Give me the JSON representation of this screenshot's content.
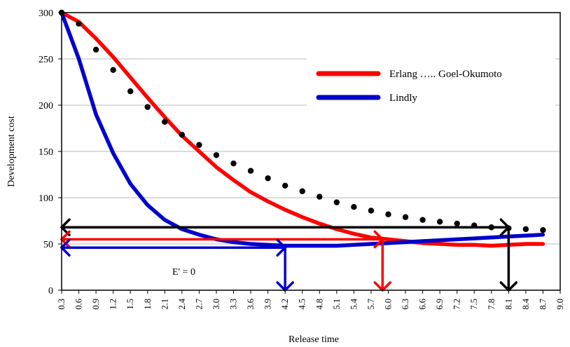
{
  "chart_data": {
    "type": "line",
    "xlabel": "Release time",
    "ylabel": "Development cost",
    "ylim": [
      0,
      300
    ],
    "yticks": [
      0,
      50,
      100,
      150,
      200,
      250,
      300
    ],
    "xlim": [
      0.3,
      9.0
    ],
    "xticks": [
      "0.3",
      "0.6",
      "0.9",
      "1.2",
      "1.5",
      "1.8",
      "2.1",
      "2.4",
      "2.7",
      "3.0",
      "3.3",
      "3.6",
      "3.9",
      "4.2",
      "4.5",
      "4.8",
      "5.1",
      "5.4",
      "5.7",
      "6.0",
      "6.3",
      "6.6",
      "6.9",
      "7.2",
      "7.5",
      "7.8",
      "8.1",
      "8.4",
      "8.7",
      "9.0"
    ],
    "grid": "horizontal",
    "legend": {
      "placement": "top-right",
      "entries": [
        {
          "label": "Erlang ….. Goel-Okumoto",
          "color": "#ff0000"
        },
        {
          "label": "Lindly",
          "color": "#0000cc"
        }
      ]
    },
    "annotation": "E' = 0",
    "series": [
      {
        "color": "#ff0000",
        "style": "solid",
        "x": [
          0.3,
          0.6,
          0.9,
          1.2,
          1.5,
          1.8,
          2.1,
          2.4,
          2.7,
          3.0,
          3.3,
          3.6,
          3.9,
          4.2,
          4.5,
          4.8,
          5.1,
          5.4,
          5.7,
          6.0,
          6.3,
          6.6,
          6.9,
          7.2,
          7.5,
          7.8,
          8.1,
          8.4,
          8.7
        ],
        "y": [
          300,
          290,
          272,
          252,
          230,
          208,
          187,
          167,
          150,
          133,
          119,
          106,
          96,
          87,
          79,
          72,
          66,
          61,
          57,
          55,
          53,
          51,
          50,
          49,
          49,
          48,
          49,
          50,
          50
        ]
      },
      {
        "color": "#0000cc",
        "style": "solid",
        "x": [
          0.3,
          0.6,
          0.9,
          1.2,
          1.5,
          1.8,
          2.1,
          2.4,
          2.7,
          3.0,
          3.3,
          3.6,
          3.9,
          4.2,
          4.5,
          4.8,
          5.1,
          5.4,
          5.7,
          6.0,
          6.3,
          6.6,
          6.9,
          7.2,
          7.5,
          7.8,
          8.1,
          8.4,
          8.7
        ],
        "y": [
          300,
          250,
          190,
          148,
          115,
          92,
          76,
          66,
          60,
          55,
          52,
          50,
          49,
          48,
          48,
          48,
          48,
          49,
          50,
          51,
          52,
          53,
          54,
          55,
          56,
          57,
          58,
          59,
          60
        ]
      },
      {
        "color": "#000000",
        "style": "dotted",
        "x": [
          0.3,
          0.6,
          0.9,
          1.2,
          1.5,
          1.8,
          2.1,
          2.4,
          2.7,
          3.0,
          3.3,
          3.6,
          3.9,
          4.2,
          4.5,
          4.8,
          5.1,
          5.4,
          5.7,
          6.0,
          6.3,
          6.6,
          6.9,
          7.2,
          7.5,
          7.8,
          8.1,
          8.4,
          8.7
        ],
        "y": [
          300,
          288,
          260,
          238,
          215,
          198,
          182,
          168,
          157,
          146,
          137,
          129,
          121,
          113,
          107,
          101,
          95,
          90,
          86,
          82,
          79,
          76,
          74,
          72,
          70,
          68,
          67,
          66,
          65
        ]
      }
    ],
    "arrows": [
      {
        "color": "#000000",
        "orientation": "horizontal",
        "y": 68,
        "x_from": 0.3,
        "x_to": 8.1
      },
      {
        "color": "#000000",
        "orientation": "vertical",
        "x": 8.1,
        "y_from": 68,
        "y_to": 0
      },
      {
        "color": "#ff0000",
        "orientation": "horizontal",
        "y": 55,
        "x_from": 0.3,
        "x_to": 5.9
      },
      {
        "color": "#ff0000",
        "orientation": "vertical",
        "x": 5.9,
        "y_from": 55,
        "y_to": 0
      },
      {
        "color": "#0000cc",
        "orientation": "horizontal",
        "y": 46,
        "x_from": 0.3,
        "x_to": 4.2
      },
      {
        "color": "#0000cc",
        "orientation": "vertical",
        "x": 4.2,
        "y_from": 46,
        "y_to": 0
      }
    ]
  }
}
